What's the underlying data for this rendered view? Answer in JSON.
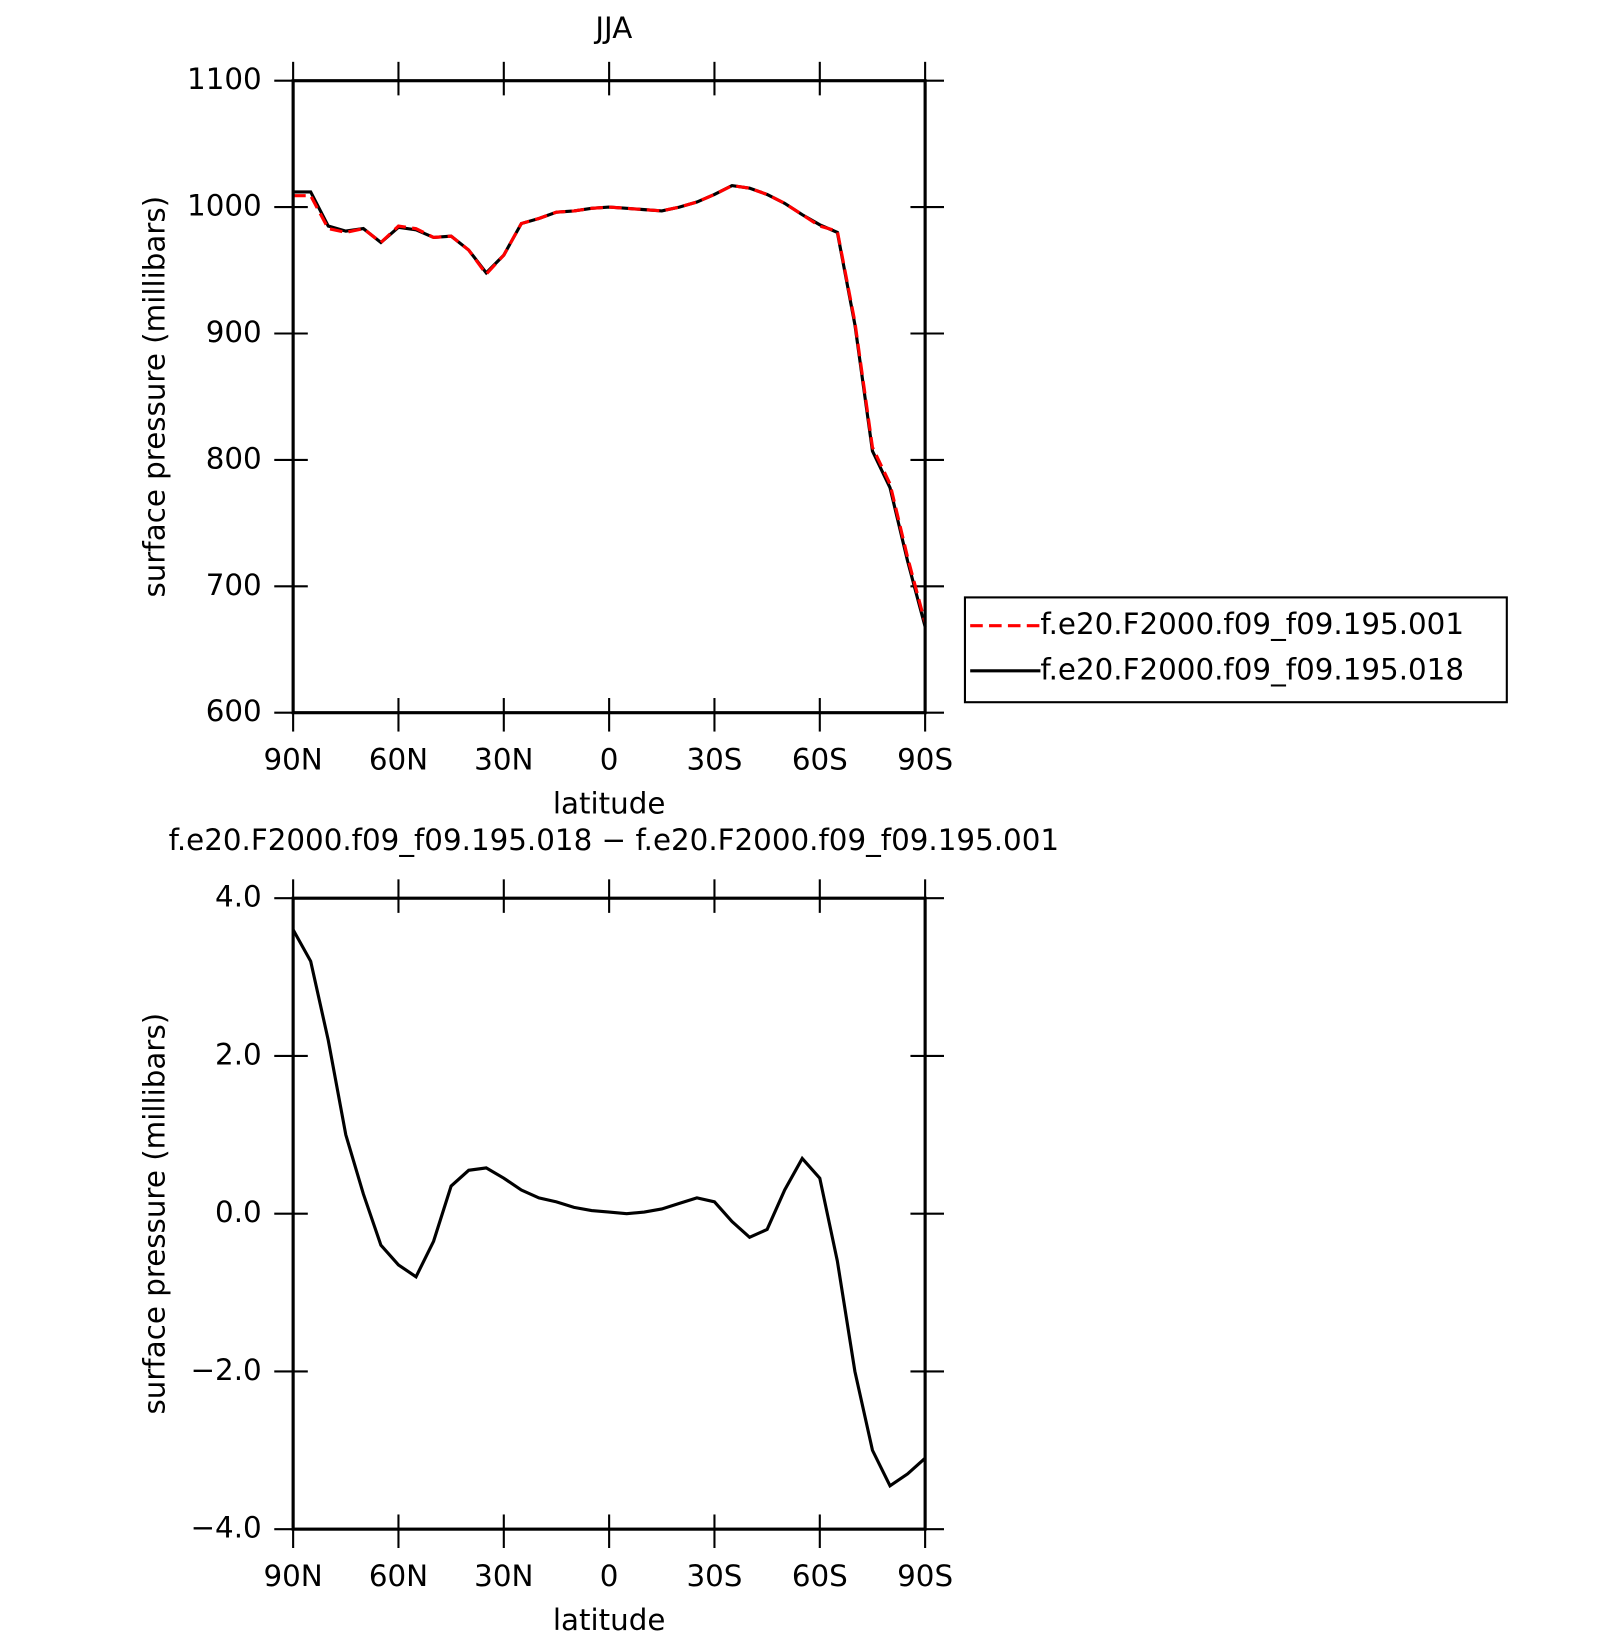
{
  "chart_data": [
    {
      "type": "line",
      "title": "JJA",
      "xlabel": "latitude",
      "ylabel": "surface pressure (millibars)",
      "x": [
        90,
        85,
        80,
        75,
        70,
        65,
        60,
        55,
        50,
        45,
        40,
        35,
        30,
        25,
        20,
        15,
        10,
        5,
        0,
        -5,
        -10,
        -15,
        -20,
        -25,
        -30,
        -35,
        -40,
        -45,
        -50,
        -55,
        -60,
        -65,
        -70,
        -75,
        -80,
        -85,
        -90
      ],
      "series": [
        {
          "name": "f.e20.F2000.f09_f09.195.001",
          "color": "#ff0000",
          "dashed": true,
          "values": [
            1009,
            1009,
            983,
            980,
            983,
            972,
            985,
            983,
            976,
            977,
            966,
            947,
            962,
            987,
            991,
            996,
            997,
            999,
            1000,
            999,
            998,
            997,
            1000,
            1004,
            1010,
            1017,
            1015,
            1010,
            1003,
            994,
            985,
            981,
            909,
            810,
            781,
            723,
            671
          ]
        },
        {
          "name": "f.e20.F2000.f09_f09.195.018",
          "color": "#000000",
          "dashed": false,
          "values": [
            1012,
            1012,
            985,
            981,
            983,
            972,
            984,
            982,
            976,
            977,
            966,
            948,
            962,
            987,
            991,
            996,
            997,
            999,
            1000,
            999,
            998,
            997,
            1000,
            1004,
            1010,
            1017,
            1015,
            1010,
            1003,
            994,
            986,
            980,
            907,
            807,
            778,
            720,
            668
          ]
        }
      ],
      "xlim": [
        90,
        -90
      ],
      "xticks": [
        {
          "value": 90,
          "label": "90N"
        },
        {
          "value": 60,
          "label": "60N"
        },
        {
          "value": 30,
          "label": "30N"
        },
        0,
        {
          "value": -30,
          "label": "30S"
        },
        {
          "value": -60,
          "label": "60S"
        },
        {
          "value": -90,
          "label": "90S"
        }
      ],
      "ylim": [
        600,
        1100
      ],
      "yticks": [
        600,
        700,
        800,
        900,
        1000,
        1100
      ],
      "legend": "right"
    },
    {
      "type": "line",
      "title": "f.e20.F2000.f09_f09.195.018 − f.e20.F2000.f09_f09.195.001",
      "xlabel": "latitude",
      "ylabel": "surface pressure (millibars)",
      "x": [
        90,
        85,
        80,
        75,
        70,
        65,
        60,
        55,
        50,
        45,
        40,
        35,
        30,
        25,
        20,
        15,
        10,
        5,
        0,
        -5,
        -10,
        -15,
        -20,
        -25,
        -30,
        -35,
        -40,
        -45,
        -50,
        -55,
        -60,
        -65,
        -70,
        -75,
        -80,
        -85,
        -90
      ],
      "series": [
        {
          "color": "#000000",
          "dashed": false,
          "values": [
            3.6,
            3.2,
            2.2,
            1.0,
            0.25,
            -0.4,
            -0.65,
            -0.8,
            -0.35,
            0.35,
            0.55,
            0.58,
            0.45,
            0.3,
            0.2,
            0.15,
            0.08,
            0.04,
            0.02,
            0.0,
            0.02,
            0.06,
            0.13,
            0.2,
            0.15,
            -0.1,
            -0.3,
            -0.2,
            0.3,
            0.7,
            0.45,
            -0.6,
            -2.0,
            -3.0,
            -3.45,
            -3.3,
            -3.1
          ]
        }
      ],
      "xlim": [
        90,
        -90
      ],
      "xticks": [
        {
          "value": 90,
          "label": "90N"
        },
        {
          "value": 60,
          "label": "60N"
        },
        {
          "value": 30,
          "label": "30N"
        },
        0,
        {
          "value": -30,
          "label": "30S"
        },
        {
          "value": -60,
          "label": "60S"
        },
        {
          "value": -90,
          "label": "90S"
        }
      ],
      "ylim": [
        -4,
        4
      ],
      "yticks": [
        {
          "value": -4,
          "label": "−4.0"
        },
        {
          "value": -2,
          "label": "−2.0"
        },
        {
          "value": 0,
          "label": "0.0"
        },
        {
          "value": 2,
          "label": "2.0"
        },
        {
          "value": 4,
          "label": "4.0"
        }
      ]
    }
  ]
}
